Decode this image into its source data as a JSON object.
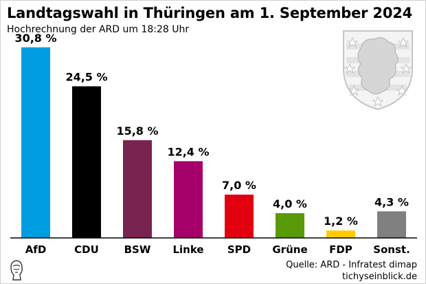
{
  "header": {
    "title": "Landtagswahl in Thüringen am 1. September 2024",
    "subtitle": "Hochrechnung der ARD um 18:28 Uhr"
  },
  "footer": {
    "source_line": "Quelle: ARD - Infratest dimap",
    "site": "tichyseinblick.de"
  },
  "emblem": {
    "name": "thuringia-coat-of-arms",
    "tint": "#e3e3e3",
    "stroke": "#c4c4c4"
  },
  "chart_data": {
    "type": "bar",
    "title": "Landtagswahl in Thüringen am 1. September 2024",
    "subtitle": "Hochrechnung der ARD um 18:28 Uhr",
    "xlabel": "",
    "ylabel": "",
    "ylim": [
      0,
      32
    ],
    "grid": false,
    "legend": "none",
    "categories": [
      "AfD",
      "CDU",
      "BSW",
      "Linke",
      "SPD",
      "Grüne",
      "FDP",
      "Sonst."
    ],
    "values": [
      30.8,
      24.5,
      15.8,
      12.4,
      7.0,
      4.0,
      1.2,
      4.3
    ],
    "value_labels": [
      "30,8 %",
      "24,5 %",
      "15,8 %",
      "12,4 %",
      "7,0 %",
      "4,0 %",
      "1,2 %",
      "4,3 %"
    ],
    "colors": [
      "#009ee0",
      "#000000",
      "#792350",
      "#a6006b",
      "#e3000f",
      "#5a9a08",
      "#ffcc00",
      "#808080"
    ]
  }
}
